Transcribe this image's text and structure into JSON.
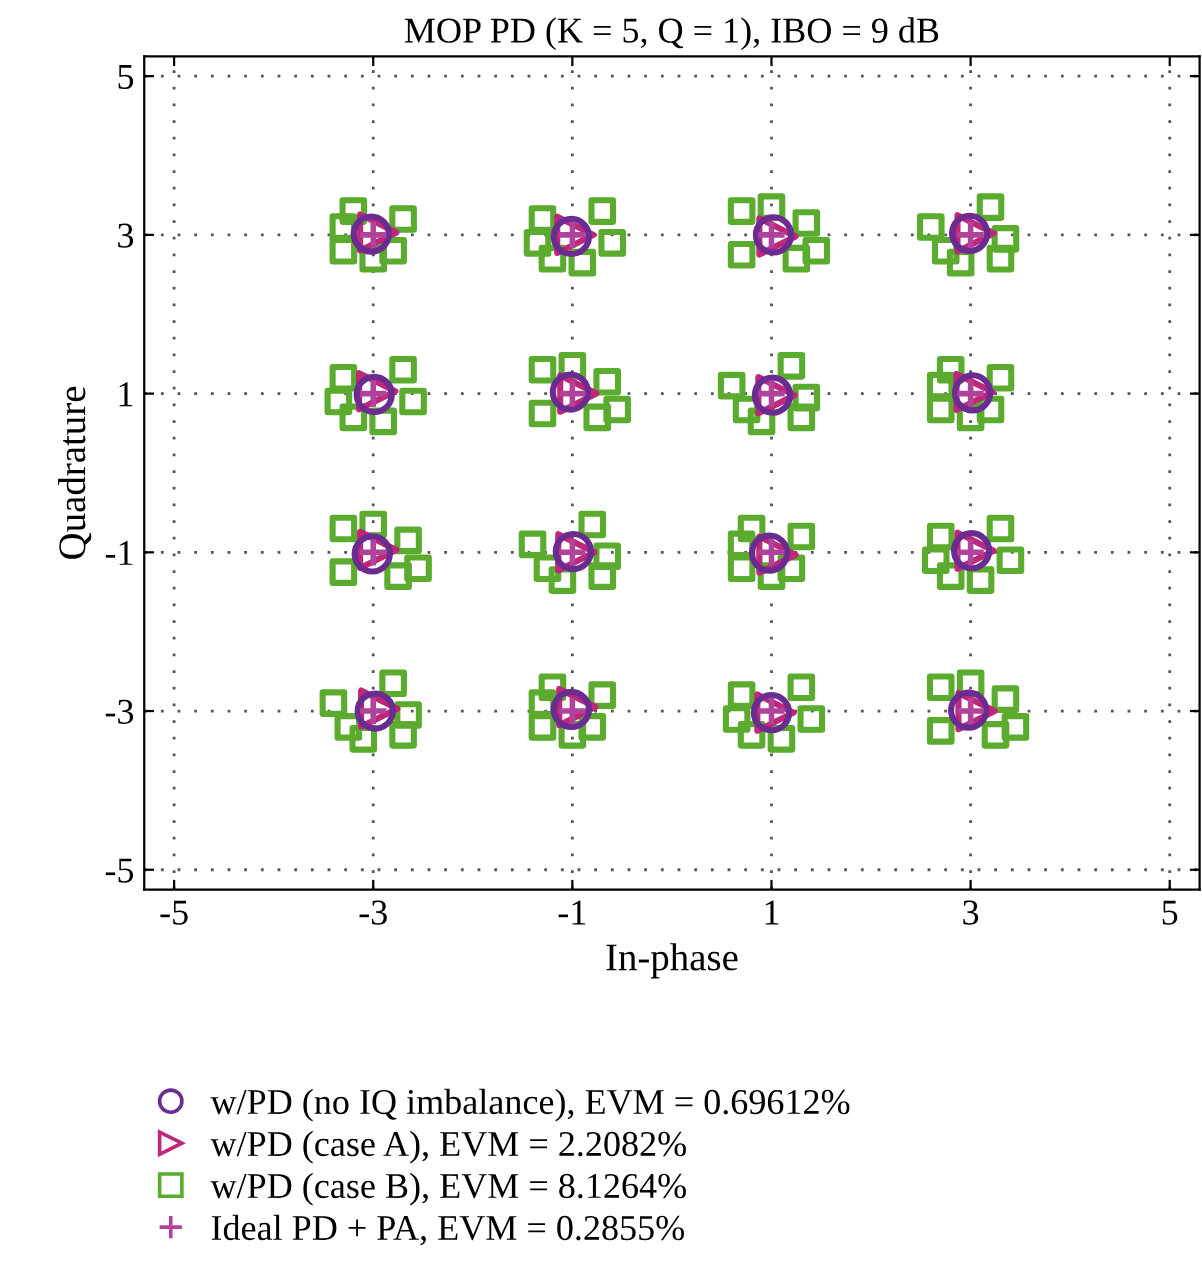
{
  "chart_data": {
    "type": "scatter",
    "title": "MOP PD (K = 5, Q = 1), IBO = 9 dB",
    "xlabel": "In-phase",
    "ylabel": "Quadrature",
    "xlim": [
      -5.3,
      5.3
    ],
    "ylim": [
      -5.25,
      5.25
    ],
    "xticks": [
      -5,
      -3,
      -1,
      1,
      3,
      5
    ],
    "yticks": [
      -5,
      -3,
      -1,
      1,
      3,
      5
    ],
    "grid": true,
    "legend": "bottom",
    "series": [
      {
        "name": "w/PD (no IQ imbalance), EVM = 0.69612%",
        "marker": "circle",
        "color": "#6a2c91",
        "x": [
          -3.02,
          -1.01,
          1.02,
          2.99,
          -2.99,
          -1.02,
          1.01,
          3.02,
          -3.01,
          -0.99,
          0.98,
          3.01,
          -2.98,
          -1.01,
          1.0,
          2.98
        ],
        "values": [
          3.01,
          2.98,
          3.0,
          3.02,
          0.99,
          1.02,
          0.98,
          1.01,
          -1.02,
          -0.99,
          -1.01,
          -0.98,
          -3.0,
          -2.98,
          -3.02,
          -2.99
        ]
      },
      {
        "name": "w/PD (case A), EVM = 2.2082%",
        "marker": "triangle",
        "color": "#c0267a",
        "x": [
          -2.95,
          -0.97,
          1.06,
          3.05,
          -2.96,
          -0.94,
          1.05,
          3.04,
          -2.95,
          -0.96,
          1.06,
          3.05,
          -2.94,
          -0.95,
          1.04,
          3.06
        ],
        "values": [
          3.03,
          3.0,
          2.98,
          3.02,
          1.03,
          1.0,
          0.98,
          1.02,
          -0.97,
          -1.0,
          -1.03,
          -0.98,
          -2.97,
          -2.95,
          -3.02,
          -3.0
        ]
      },
      {
        "name": "w/PD (case B), EVM = 8.1264%",
        "marker": "square",
        "color": "#5aab2e",
        "x": [
          -3.2,
          -2.7,
          -3.3,
          -3.3,
          -2.8,
          -3.0,
          -0.7,
          -1.3,
          -0.6,
          -1.2,
          -0.9,
          -1.35,
          1.0,
          1.35,
          0.7,
          1.25,
          0.7,
          1.45,
          2.6,
          3.2,
          3.35,
          2.9,
          3.3,
          2.75,
          -2.7,
          -3.3,
          -2.6,
          -3.2,
          -2.9,
          -3.35,
          -1.0,
          -0.65,
          -1.3,
          -0.75,
          -1.3,
          -0.55,
          0.6,
          1.2,
          1.35,
          0.9,
          1.3,
          0.75,
          2.8,
          3.3,
          2.7,
          2.7,
          3.2,
          3.0,
          -3.0,
          -2.65,
          -3.3,
          -2.75,
          -3.3,
          -2.55,
          -1.4,
          -0.8,
          -0.65,
          -1.1,
          -0.7,
          -1.25,
          0.8,
          1.3,
          0.7,
          0.7,
          1.2,
          1.0,
          3.3,
          2.7,
          3.4,
          2.8,
          3.1,
          2.65,
          -3.4,
          -2.8,
          -2.65,
          -3.1,
          -2.7,
          -3.25,
          -1.2,
          -0.7,
          -1.3,
          -1.3,
          -0.8,
          -1.0,
          1.3,
          0.7,
          1.4,
          0.8,
          1.1,
          0.65,
          3.0,
          3.35,
          2.7,
          3.25,
          2.7,
          3.45
        ],
        "values": [
          3.3,
          3.2,
          3.1,
          2.8,
          2.8,
          2.7,
          3.3,
          3.2,
          2.9,
          2.7,
          2.65,
          2.9,
          3.35,
          3.15,
          3.3,
          2.7,
          2.75,
          2.8,
          3.1,
          3.35,
          2.95,
          2.65,
          2.7,
          2.8,
          1.3,
          1.2,
          0.9,
          0.7,
          0.65,
          0.9,
          1.35,
          1.15,
          1.3,
          0.7,
          0.75,
          0.8,
          1.1,
          1.35,
          0.95,
          0.65,
          0.7,
          0.8,
          1.3,
          1.2,
          1.1,
          0.8,
          0.8,
          0.7,
          -0.65,
          -0.85,
          -0.7,
          -1.3,
          -1.25,
          -1.2,
          -0.9,
          -0.65,
          -1.05,
          -1.35,
          -1.3,
          -1.2,
          -0.7,
          -0.8,
          -0.9,
          -1.2,
          -1.2,
          -1.3,
          -0.7,
          -0.8,
          -1.1,
          -1.3,
          -1.35,
          -1.1,
          -2.9,
          -2.65,
          -3.05,
          -3.35,
          -3.3,
          -3.2,
          -2.7,
          -2.8,
          -2.9,
          -3.2,
          -3.2,
          -3.3,
          -2.7,
          -2.8,
          -3.1,
          -3.3,
          -3.35,
          -3.1,
          -2.65,
          -2.85,
          -2.7,
          -3.3,
          -3.25,
          -3.2
        ]
      },
      {
        "name": "Ideal PD + PA, EVM = 0.2855%",
        "marker": "cross",
        "color": "#b0449a",
        "x": [
          -3,
          -1,
          1,
          3,
          -3,
          -1,
          1,
          3,
          -3,
          -1,
          1,
          3,
          -3,
          -1,
          1,
          3
        ],
        "values": [
          3,
          3,
          3,
          3,
          1,
          1,
          1,
          1,
          -1,
          -1,
          -1,
          -1,
          -3,
          -3,
          -3,
          -3
        ]
      }
    ]
  }
}
